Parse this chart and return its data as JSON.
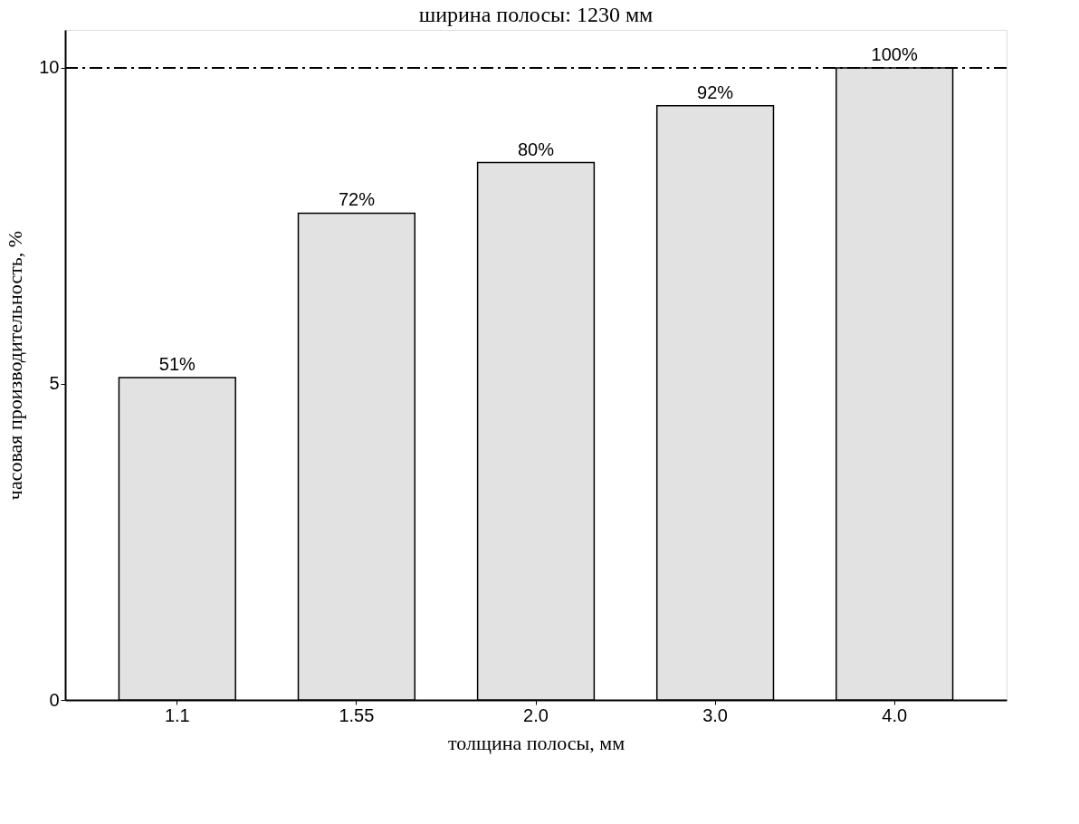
{
  "chart_data": {
    "type": "bar",
    "title": "ширина полосы: 1230 мм",
    "xlabel": "толщина полосы, мм",
    "ylabel": "часовая производительность, %",
    "categories": [
      "1.1",
      "1.55",
      "2.0",
      "3.0",
      "4.0"
    ],
    "values": [
      5.1,
      7.7,
      8.5,
      9.4,
      10
    ],
    "annotations": [
      {
        "text": "51%",
        "x": "1.1",
        "y": 5.1
      },
      {
        "text": "72%",
        "x": "1.55",
        "y": 7.7
      },
      {
        "text": "80%",
        "x": "2.0",
        "y": 8.5
      },
      {
        "text": "92%",
        "x": "3.0",
        "y": 9.4
      },
      {
        "text": "100%",
        "x": "4.0",
        "y": 10
      }
    ],
    "color": "#e2e2e2",
    "ylim": [
      0,
      10.6
    ],
    "yticks": [
      0,
      5,
      10
    ],
    "ref_lines": [
      {
        "axis": "y",
        "value": 10,
        "line_style": "dashdot",
        "color": "#000000"
      }
    ],
    "grid": false
  }
}
